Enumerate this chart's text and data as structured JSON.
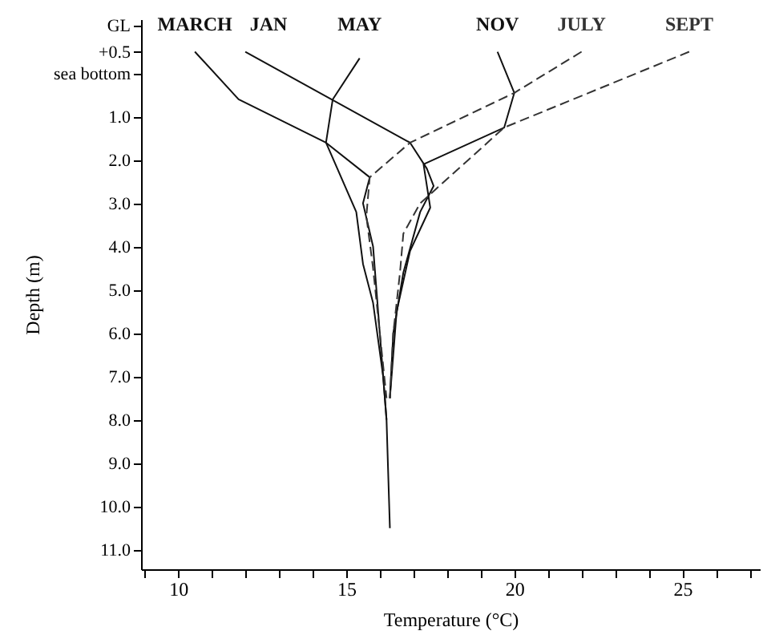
{
  "chart_data": {
    "type": "line",
    "xlabel": "Temperature (°C)",
    "ylabel": "Depth (m)",
    "xlim": [
      8.9,
      27.3
    ],
    "ylim": [
      11.45,
      -1.25
    ],
    "xticks": [
      {
        "value": 9,
        "label": null
      },
      10,
      {
        "value": 11,
        "label": null
      },
      {
        "value": 12,
        "label": null
      },
      {
        "value": 13,
        "label": null
      },
      {
        "value": 14,
        "label": null
      },
      15,
      {
        "value": 16,
        "label": null
      },
      {
        "value": 17,
        "label": null
      },
      {
        "value": 18,
        "label": null
      },
      {
        "value": 19,
        "label": null
      },
      20,
      {
        "value": 21,
        "label": null
      },
      {
        "value": 22,
        "label": null
      },
      {
        "value": 23,
        "label": null
      },
      {
        "value": 24,
        "label": null
      },
      25,
      {
        "value": 26,
        "label": null
      },
      {
        "value": 27,
        "label": null
      }
    ],
    "yticks": [
      {
        "value": -1.1,
        "label": "GL"
      },
      {
        "value": -0.5,
        "label": "+0.5"
      },
      {
        "value": 0,
        "label": "sea bottom"
      },
      {
        "value": 1,
        "label": "1.0"
      },
      {
        "value": 2,
        "label": "2.0"
      },
      {
        "value": 3,
        "label": "3.0"
      },
      {
        "value": 4,
        "label": "4.0"
      },
      {
        "value": 5,
        "label": "5.0"
      },
      {
        "value": 6,
        "label": "6.0"
      },
      {
        "value": 7,
        "label": "7.0"
      },
      {
        "value": 8,
        "label": "8.0"
      },
      {
        "value": 9,
        "label": "9.0"
      },
      {
        "value": 10,
        "label": "10.0"
      },
      {
        "value": 11,
        "label": "11.0"
      }
    ],
    "grid": false,
    "marker": "none",
    "series": [
      {
        "name": "MARCH",
        "color": "#111111",
        "line_style": "solid",
        "x": [
          10.5,
          11.8,
          14.4,
          15.7,
          15.5,
          15.8,
          15.9,
          16.0,
          16.1,
          16.2
        ],
        "values": [
          -0.5,
          0.6,
          1.6,
          2.4,
          3.0,
          4.0,
          5.0,
          6.0,
          7.0,
          8.0
        ]
      },
      {
        "name": "JAN",
        "color": "#111111",
        "line_style": "solid",
        "x": [
          12.0,
          16.9,
          17.4,
          17.6,
          17.2,
          16.7,
          16.4,
          16.3
        ],
        "values": [
          -0.5,
          1.6,
          2.2,
          2.6,
          3.2,
          4.6,
          6.0,
          7.5
        ]
      },
      {
        "name": "MAY",
        "color": "#111111",
        "line_style": "solid",
        "x": [
          15.4,
          14.6,
          14.4,
          15.3,
          15.5,
          15.8,
          16.1,
          16.2,
          16.3
        ],
        "values": [
          -0.35,
          0.6,
          1.6,
          3.2,
          4.4,
          5.3,
          7.0,
          8.0,
          10.5
        ]
      },
      {
        "name": "NOV",
        "color": "#111111",
        "line_style": "solid",
        "x": [
          19.5,
          20.0,
          19.7,
          17.3,
          17.5,
          16.9,
          16.5,
          16.3
        ],
        "values": [
          -0.5,
          0.45,
          1.25,
          2.1,
          3.1,
          4.1,
          5.5,
          7.5
        ]
      },
      {
        "name": "JULY",
        "color": "#333333",
        "line_style": "dashed",
        "x": [
          22.0,
          20.0,
          16.9,
          15.7,
          15.6,
          15.8,
          16.0,
          16.2
        ],
        "values": [
          -0.5,
          0.45,
          1.6,
          2.4,
          3.3,
          4.5,
          6.0,
          7.5
        ]
      },
      {
        "name": "SEPT",
        "color": "#333333",
        "line_style": "dashed",
        "x": [
          25.2,
          19.7,
          17.2,
          16.7,
          16.6,
          16.4,
          16.3
        ],
        "values": [
          -0.5,
          1.25,
          3.0,
          3.7,
          4.6,
          6.0,
          7.5
        ]
      }
    ]
  }
}
